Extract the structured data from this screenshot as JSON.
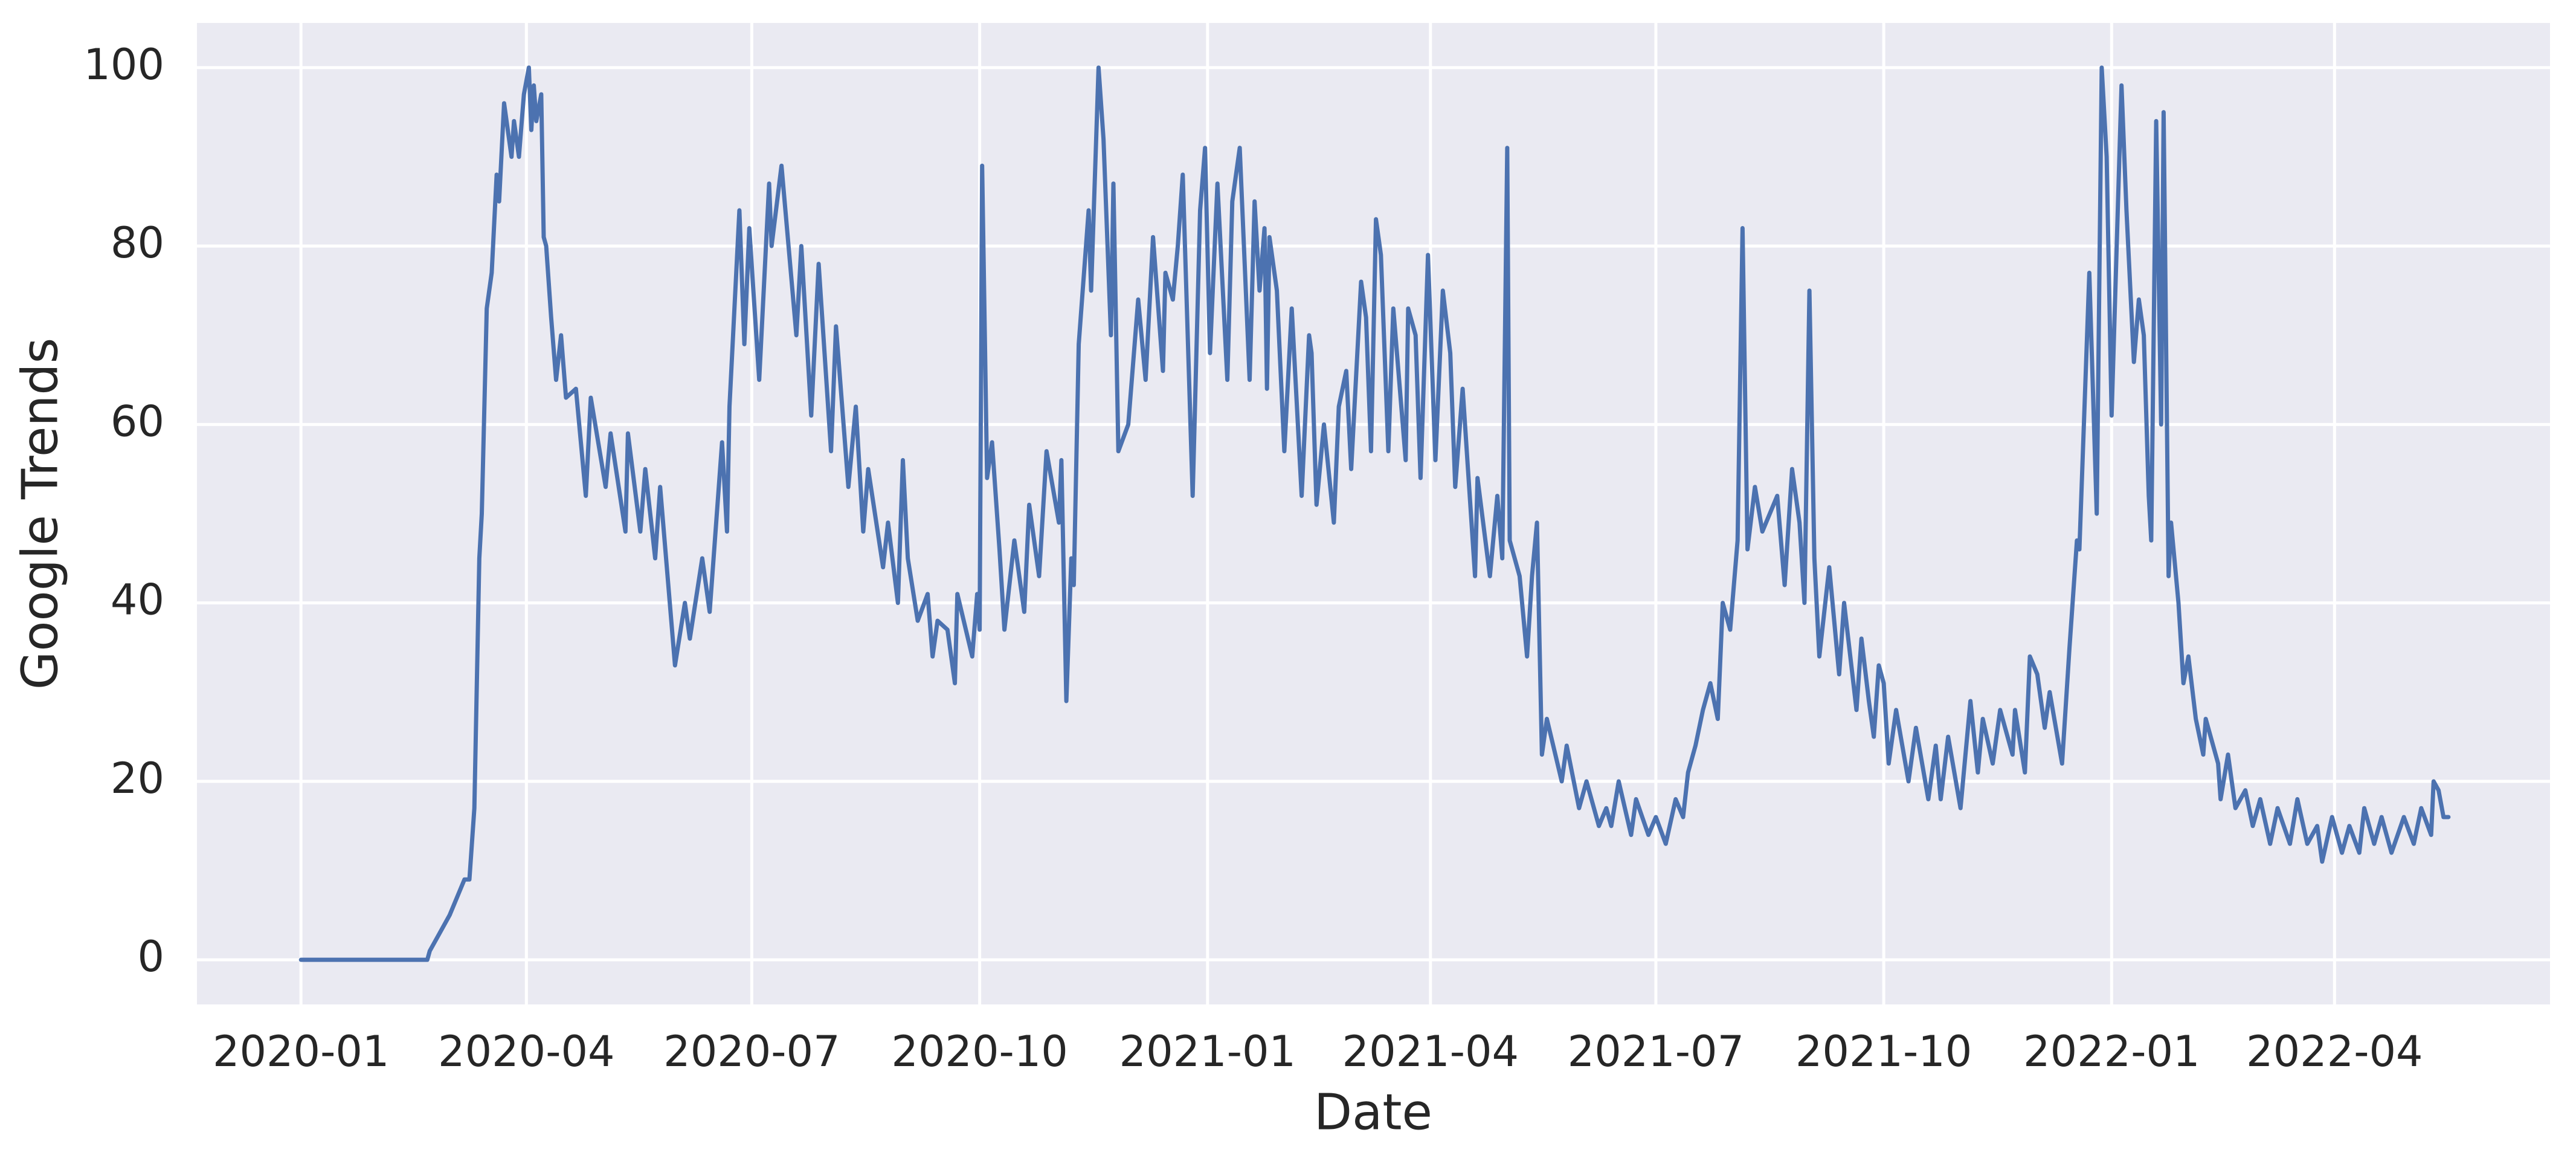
{
  "chart_data": {
    "type": "line",
    "x_label": "Date",
    "y_label": "Google Trends",
    "color": "#4c72b0",
    "grid": true,
    "xlim": [
      -42,
      908
    ],
    "ylim": [
      -5,
      105
    ],
    "xticks": [
      {
        "value": 0,
        "label": "2020-01"
      },
      {
        "value": 91,
        "label": "2020-04"
      },
      {
        "value": 182,
        "label": "2020-07"
      },
      {
        "value": 274,
        "label": "2020-10"
      },
      {
        "value": 366,
        "label": "2021-01"
      },
      {
        "value": 456,
        "label": "2021-04"
      },
      {
        "value": 547,
        "label": "2021-07"
      },
      {
        "value": 639,
        "label": "2021-10"
      },
      {
        "value": 731,
        "label": "2022-01"
      },
      {
        "value": 821,
        "label": "2022-04"
      }
    ],
    "yticks": [
      0,
      20,
      40,
      60,
      80,
      100
    ],
    "x": [
      0,
      51,
      52,
      56,
      60,
      66,
      68,
      70,
      72,
      73,
      75,
      77,
      79,
      80,
      82,
      85,
      86,
      88,
      90,
      92,
      93,
      94,
      95,
      97,
      98,
      99,
      101,
      103,
      105,
      107,
      111,
      115,
      117,
      123,
      125,
      131,
      132,
      137,
      139,
      143,
      145,
      151,
      155,
      157,
      162,
      165,
      170,
      172,
      173,
      177,
      179,
      181,
      185,
      189,
      190,
      194,
      200,
      202,
      206,
      209,
      214,
      216,
      221,
      224,
      227,
      229,
      235,
      237,
      241,
      243,
      245,
      249,
      253,
      255,
      257,
      261,
      264,
      265,
      271,
      273,
      274,
      275,
      277,
      279,
      282,
      284,
      288,
      292,
      294,
      298,
      301,
      306,
      307,
      309,
      311,
      312,
      314,
      318,
      319,
      322,
      324,
      327,
      328,
      330,
      334,
      338,
      341,
      344,
      348,
      349,
      352,
      354,
      356,
      360,
      363,
      365,
      367,
      370,
      374,
      376,
      379,
      383,
      385,
      387,
      389,
      390,
      391,
      394,
      397,
      400,
      404,
      407,
      408,
      410,
      413,
      417,
      419,
      422,
      424,
      428,
      430,
      432,
      434,
      436,
      439,
      441,
      446,
      447,
      450,
      452,
      455,
      458,
      461,
      464,
      466,
      469,
      474,
      475,
      480,
      483,
      485,
      487,
      488,
      492,
      495,
      497,
      499,
      501,
      503,
      509,
      511,
      516,
      519,
      524,
      527,
      529,
      532,
      537,
      539,
      544,
      547,
      551,
      555,
      558,
      560,
      563,
      566,
      569,
      572,
      574,
      577,
      580,
      582,
      584,
      587,
      590,
      596,
      599,
      602,
      605,
      607,
      609,
      611,
      613,
      617,
      621,
      623,
      628,
      630,
      633,
      635,
      637,
      639,
      641,
      644,
      649,
      652,
      657,
      660,
      662,
      665,
      670,
      674,
      677,
      679,
      683,
      686,
      691,
      692,
      696,
      698,
      701,
      704,
      706,
      711,
      714,
      717,
      718,
      722,
      725,
      727,
      729,
      731,
      735,
      737,
      740,
      742,
      744,
      746,
      747,
      749,
      751,
      752,
      754,
      755,
      758,
      760,
      762,
      765,
      768,
      769,
      774,
      775,
      778,
      781,
      785,
      788,
      791,
      795,
      798,
      803,
      806,
      810,
      814,
      816,
      820,
      824,
      827,
      831,
      833,
      837,
      840,
      844,
      849,
      853,
      856,
      860,
      861,
      863,
      865,
      867
    ],
    "values": [
      0,
      0,
      1,
      3,
      5,
      9,
      9,
      17,
      45,
      50,
      73,
      77,
      88,
      85,
      96,
      90,
      94,
      90,
      97,
      100,
      93,
      98,
      94,
      97,
      81,
      80,
      72,
      65,
      70,
      63,
      64,
      52,
      63,
      53,
      59,
      48,
      59,
      48,
      55,
      45,
      53,
      33,
      40,
      36,
      45,
      39,
      58,
      48,
      62,
      84,
      69,
      82,
      65,
      87,
      80,
      89,
      70,
      80,
      61,
      78,
      57,
      71,
      53,
      62,
      48,
      55,
      44,
      49,
      40,
      56,
      45,
      38,
      41,
      34,
      38,
      37,
      31,
      41,
      34,
      41,
      37,
      89,
      54,
      58,
      46,
      37,
      47,
      39,
      51,
      43,
      57,
      49,
      56,
      29,
      45,
      42,
      69,
      84,
      75,
      100,
      92,
      70,
      87,
      57,
      60,
      74,
      65,
      81,
      66,
      77,
      74,
      80,
      88,
      52,
      84,
      91,
      68,
      87,
      65,
      85,
      91,
      65,
      85,
      75,
      82,
      64,
      81,
      75,
      57,
      73,
      52,
      70,
      68,
      51,
      60,
      49,
      62,
      66,
      55,
      76,
      72,
      57,
      83,
      79,
      57,
      73,
      56,
      73,
      70,
      54,
      79,
      56,
      75,
      68,
      53,
      64,
      43,
      54,
      43,
      52,
      45,
      91,
      47,
      43,
      34,
      43,
      49,
      23,
      27,
      20,
      24,
      17,
      20,
      15,
      17,
      15,
      20,
      14,
      18,
      14,
      16,
      13,
      18,
      16,
      21,
      24,
      28,
      31,
      27,
      40,
      37,
      47,
      82,
      46,
      53,
      48,
      52,
      42,
      55,
      49,
      40,
      75,
      45,
      34,
      44,
      32,
      40,
      28,
      36,
      29,
      25,
      33,
      31,
      22,
      28,
      20,
      26,
      18,
      24,
      18,
      25,
      17,
      29,
      21,
      27,
      22,
      28,
      23,
      28,
      21,
      34,
      32,
      26,
      30,
      22,
      35,
      47,
      46,
      77,
      50,
      100,
      90,
      61,
      98,
      84,
      67,
      74,
      70,
      52,
      47,
      94,
      60,
      95,
      43,
      49,
      40,
      31,
      34,
      27,
      23,
      27,
      22,
      18,
      23,
      17,
      19,
      15,
      18,
      13,
      17,
      13,
      18,
      13,
      15,
      11,
      16,
      12,
      15,
      12,
      17,
      13,
      16,
      12,
      16,
      13,
      17,
      14,
      20,
      19,
      16,
      16
    ]
  }
}
